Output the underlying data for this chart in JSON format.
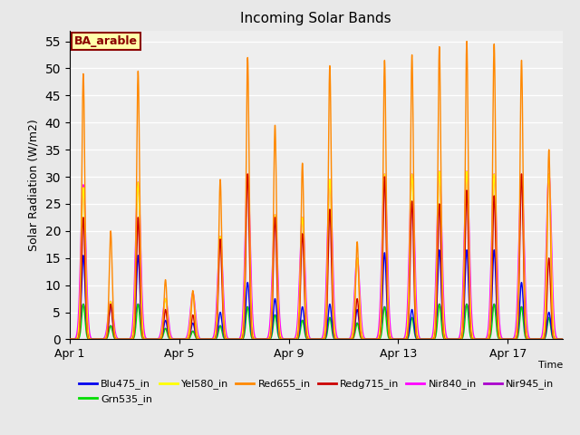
{
  "title": "Incoming Solar Bands",
  "xlabel": "Time",
  "ylabel": "Solar Radiation (W/m2)",
  "annotation_text": "BA_arable",
  "ylim": [
    0,
    57
  ],
  "yticks": [
    0,
    5,
    10,
    15,
    20,
    25,
    30,
    35,
    40,
    45,
    50,
    55
  ],
  "series": {
    "Blu475_in": {
      "color": "#0000ee",
      "lw": 1.0
    },
    "Grn535_in": {
      "color": "#00dd00",
      "lw": 1.0
    },
    "Yel580_in": {
      "color": "#ffff00",
      "lw": 1.0
    },
    "Red655_in": {
      "color": "#ff8800",
      "lw": 1.0
    },
    "Redg715_in": {
      "color": "#cc0000",
      "lw": 1.0
    },
    "Nir840_in": {
      "color": "#ff00ff",
      "lw": 1.2
    },
    "Nir945_in": {
      "color": "#aa00cc",
      "lw": 1.2
    }
  },
  "fig_bg": "#e8e8e8",
  "plot_bg": "#eeeeee",
  "n_days": 18,
  "day_peaks": {
    "1": {
      "orange": 49.0,
      "red": 22.5,
      "mag": 28.5,
      "blu": 15.5,
      "yel": 28.0,
      "grn": 6.5,
      "pur": 6.5
    },
    "2": {
      "orange": 20.0,
      "red": 6.5,
      "mag": 7.0,
      "blu": 6.5,
      "yel": 7.0,
      "grn": 2.5,
      "pur": 2.5
    },
    "3": {
      "orange": 49.5,
      "red": 22.5,
      "mag": 29.0,
      "blu": 15.5,
      "yel": 29.0,
      "grn": 6.5,
      "pur": 6.5
    },
    "4": {
      "orange": 11.0,
      "red": 5.5,
      "mag": 7.5,
      "blu": 3.5,
      "yel": 7.5,
      "grn": 2.0,
      "pur": 2.0
    },
    "5": {
      "orange": 9.0,
      "red": 4.5,
      "mag": 8.5,
      "blu": 3.0,
      "yel": 8.5,
      "grn": 1.5,
      "pur": 1.5
    },
    "6": {
      "orange": 29.5,
      "red": 18.5,
      "mag": 19.0,
      "blu": 5.0,
      "yel": 19.0,
      "grn": 2.5,
      "pur": 2.5
    },
    "7": {
      "orange": 52.0,
      "red": 30.5,
      "mag": 30.5,
      "blu": 10.5,
      "yel": 30.5,
      "grn": 6.0,
      "pur": 6.0
    },
    "8": {
      "orange": 39.5,
      "red": 22.5,
      "mag": 23.0,
      "blu": 7.5,
      "yel": 23.0,
      "grn": 4.5,
      "pur": 4.5
    },
    "9": {
      "orange": 32.5,
      "red": 19.5,
      "mag": 22.5,
      "blu": 6.0,
      "yel": 22.5,
      "grn": 3.5,
      "pur": 3.5
    },
    "10": {
      "orange": 50.5,
      "red": 24.0,
      "mag": 29.5,
      "blu": 6.5,
      "yel": 29.5,
      "grn": 4.0,
      "pur": 4.0
    },
    "11": {
      "orange": 18.0,
      "red": 7.5,
      "mag": 15.0,
      "blu": 5.5,
      "yel": 15.0,
      "grn": 3.0,
      "pur": 3.0
    },
    "12": {
      "orange": 51.5,
      "red": 30.0,
      "mag": 30.5,
      "blu": 16.0,
      "yel": 30.5,
      "grn": 6.0,
      "pur": 6.0
    },
    "13": {
      "orange": 52.5,
      "red": 25.5,
      "mag": 30.5,
      "blu": 5.5,
      "yel": 30.5,
      "grn": 4.0,
      "pur": 4.0
    },
    "14": {
      "orange": 54.0,
      "red": 25.0,
      "mag": 31.0,
      "blu": 16.5,
      "yel": 31.0,
      "grn": 6.5,
      "pur": 6.5
    },
    "15": {
      "orange": 55.0,
      "red": 27.5,
      "mag": 31.0,
      "blu": 16.5,
      "yel": 31.0,
      "grn": 6.5,
      "pur": 6.5
    },
    "16": {
      "orange": 54.5,
      "red": 26.5,
      "mag": 30.5,
      "blu": 16.5,
      "yel": 30.5,
      "grn": 6.5,
      "pur": 6.5
    },
    "17": {
      "orange": 51.5,
      "red": 30.5,
      "mag": 30.5,
      "blu": 10.5,
      "yel": 30.5,
      "grn": 6.0,
      "pur": 6.0
    },
    "18": {
      "orange": 35.0,
      "red": 15.0,
      "mag": 30.5,
      "blu": 5.0,
      "yel": 30.5,
      "grn": 4.0,
      "pur": 4.0
    }
  },
  "xtick_days": [
    0,
    4,
    8,
    12,
    16
  ],
  "xtick_labels": [
    "Apr 1",
    "Apr 5",
    "Apr 9",
    "Apr 13",
    "Apr 17"
  ]
}
